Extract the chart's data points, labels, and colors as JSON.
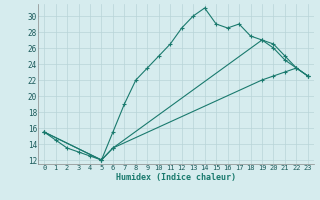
{
  "xlabel": "Humidex (Indice chaleur)",
  "background_color": "#d6ecee",
  "line_color": "#1a7a6e",
  "grid_color": "#b8d4d8",
  "xlim": [
    -0.5,
    23.5
  ],
  "ylim": [
    11.5,
    31.5
  ],
  "xticks": [
    0,
    1,
    2,
    3,
    4,
    5,
    6,
    7,
    8,
    9,
    10,
    11,
    12,
    13,
    14,
    15,
    16,
    17,
    18,
    19,
    20,
    21,
    22,
    23
  ],
  "yticks": [
    12,
    14,
    16,
    18,
    20,
    22,
    24,
    26,
    28,
    30
  ],
  "series1": [
    [
      0,
      15.5
    ],
    [
      1,
      14.5
    ],
    [
      2,
      13.5
    ],
    [
      3,
      13.0
    ],
    [
      4,
      12.5
    ],
    [
      5,
      12.0
    ],
    [
      6,
      15.5
    ],
    [
      7,
      19.0
    ],
    [
      8,
      22.0
    ],
    [
      9,
      23.5
    ],
    [
      10,
      25.0
    ],
    [
      11,
      26.5
    ],
    [
      12,
      28.5
    ],
    [
      13,
      30.0
    ],
    [
      14,
      31.0
    ],
    [
      15,
      29.0
    ],
    [
      16,
      28.5
    ],
    [
      17,
      29.0
    ],
    [
      18,
      27.5
    ],
    [
      19,
      27.0
    ],
    [
      20,
      26.0
    ],
    [
      21,
      24.5
    ],
    [
      22,
      23.5
    ],
    [
      23,
      22.5
    ]
  ],
  "series2": [
    [
      0,
      15.5
    ],
    [
      5,
      12.0
    ],
    [
      6,
      13.5
    ],
    [
      19,
      27.0
    ],
    [
      20,
      26.5
    ],
    [
      21,
      25.0
    ],
    [
      22,
      23.5
    ],
    [
      23,
      22.5
    ]
  ],
  "series3": [
    [
      0,
      15.5
    ],
    [
      5,
      12.0
    ],
    [
      6,
      13.5
    ],
    [
      19,
      22.0
    ],
    [
      20,
      22.5
    ],
    [
      21,
      23.0
    ],
    [
      22,
      23.5
    ],
    [
      23,
      22.5
    ]
  ]
}
